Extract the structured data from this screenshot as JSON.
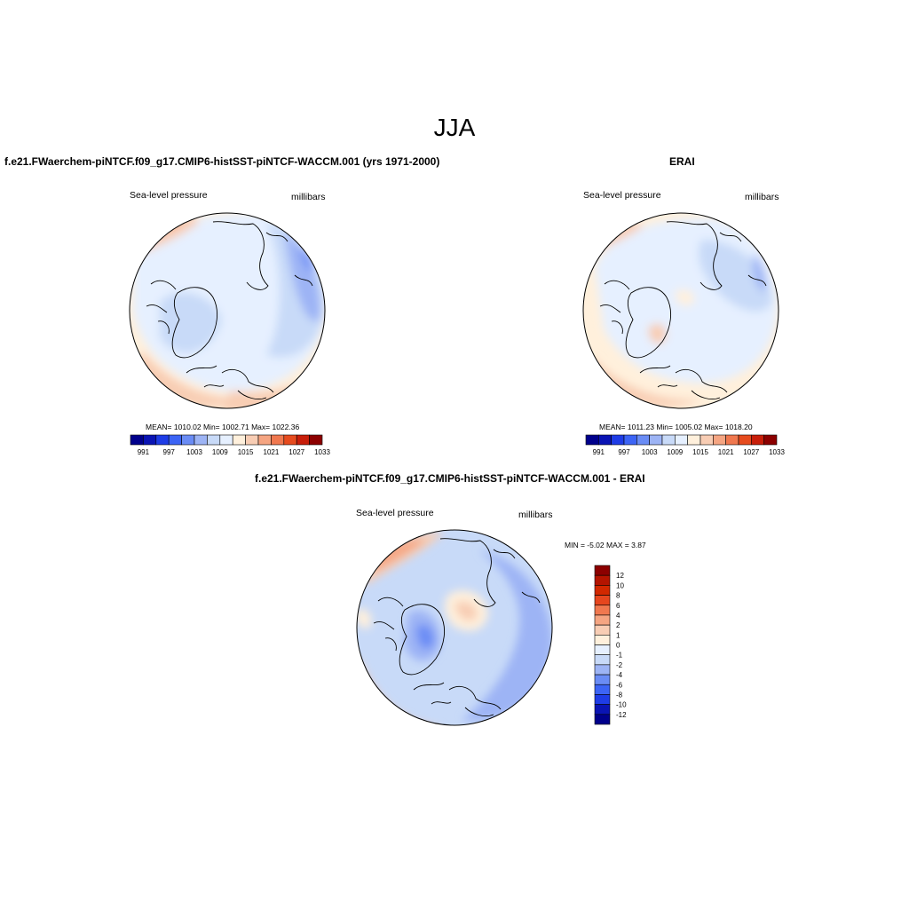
{
  "season_title": "JJA",
  "panels": [
    {
      "id": "model",
      "title": "f.e21.FWaerchem-piNTCF.f09_g17.CMIP6-histSST-piNTCF-WACCM.001 (yrs 1971-2000)",
      "field_label": "Sea-level pressure",
      "units_label": "millibars",
      "stats": "MEAN= 1010.02  Min= 1002.71  Max= 1022.36"
    },
    {
      "id": "obs",
      "title": "ERAI",
      "field_label": "Sea-level pressure",
      "units_label": "millibars",
      "stats": "MEAN= 1011.23  Min= 1005.02  Max= 1018.20"
    },
    {
      "id": "diff",
      "title": "f.e21.FWaerchem-piNTCF.f09_g17.CMIP6-histSST-piNTCF-WACCM.001 - ERAI",
      "field_label": "Sea-level pressure",
      "units_label": "millibars",
      "stats": "MIN =  -5.02 MAX =   3.87"
    }
  ],
  "colorbar_abs": {
    "colors": [
      "#00008c",
      "#0a14b4",
      "#1e3ce6",
      "#3c64f5",
      "#6a8cf5",
      "#9db4f5",
      "#c8daf8",
      "#e6f0ff",
      "#fff0dc",
      "#f8cdb4",
      "#f5a582",
      "#f0784f",
      "#e64b1e",
      "#c81e0a",
      "#8c0000"
    ],
    "tick_labels": [
      "991",
      "997",
      "1003",
      "1009",
      "1015",
      "1021",
      "1027",
      "1033"
    ]
  },
  "colorbar_diff": {
    "colors": [
      "#8c0000",
      "#b41400",
      "#d22800",
      "#e6461e",
      "#f0784f",
      "#f5a582",
      "#f8cdb4",
      "#fff0dc",
      "#e6f0ff",
      "#c8daf8",
      "#9db4f5",
      "#6a8cf5",
      "#3c64f5",
      "#1e3ce6",
      "#0a14b4",
      "#00008c"
    ],
    "tick_labels": [
      "12",
      "10",
      "8",
      "6",
      "4",
      "2",
      "1",
      "0",
      "-1",
      "-2",
      "-4",
      "-6",
      "-8",
      "-10",
      "-12"
    ]
  }
}
